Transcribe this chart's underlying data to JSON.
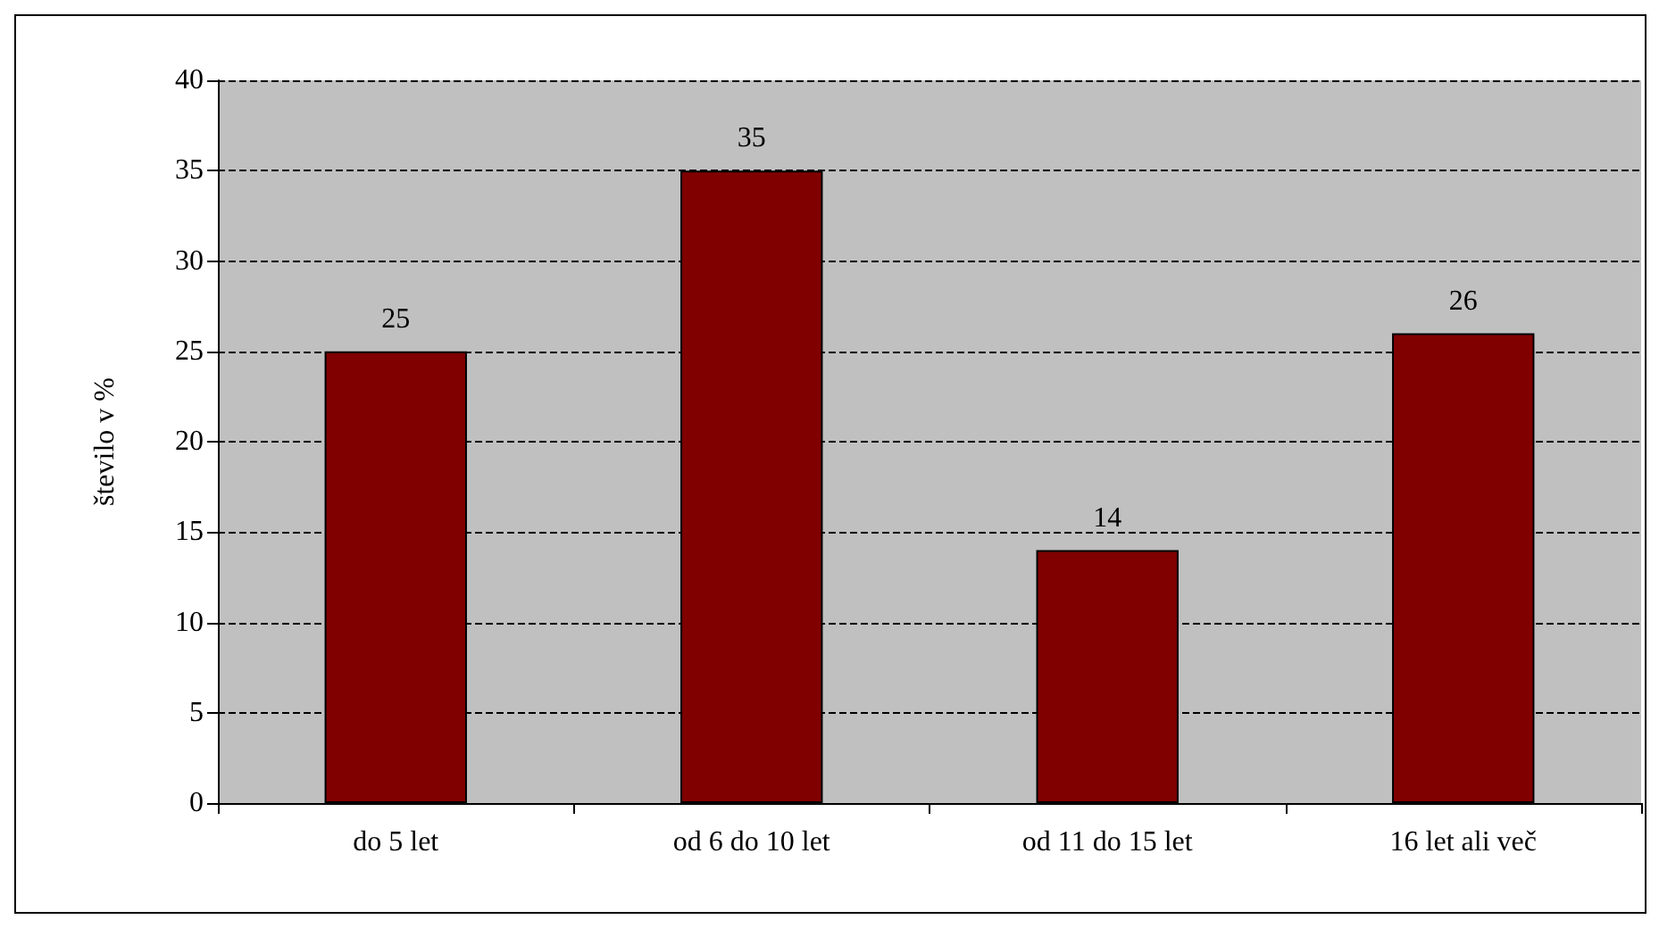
{
  "chart_data": {
    "type": "bar",
    "ylabel": "število v %",
    "categories": [
      "do 5 let",
      "od 6 do 10 let",
      "od 11 do 15 let",
      "16 let ali več"
    ],
    "values": [
      25,
      35,
      14,
      26
    ],
    "color": "#800000",
    "ylim": [
      0,
      40
    ],
    "yticks": [
      0,
      5,
      10,
      15,
      20,
      25,
      30,
      35,
      40
    ],
    "grid": "y",
    "data_labels": true
  }
}
